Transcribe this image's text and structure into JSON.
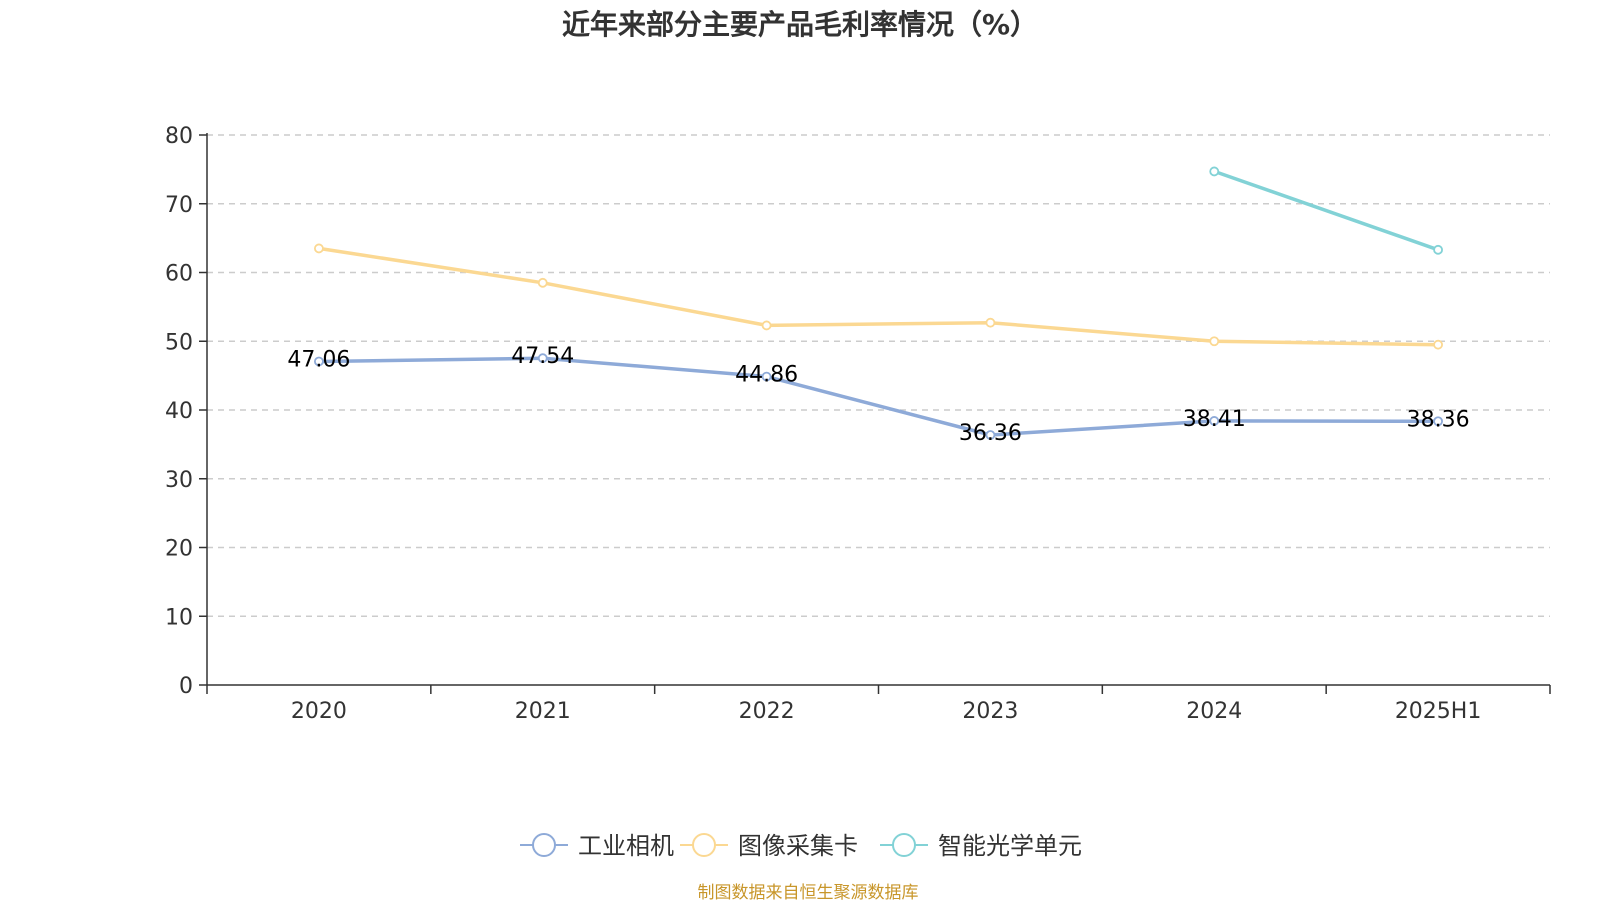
{
  "chart_data": {
    "type": "line",
    "title": "近年来部分主要产品毛利率情况（%）",
    "xlabel": "",
    "ylabel": "",
    "categories": [
      "2020",
      "2021",
      "2022",
      "2023",
      "2024",
      "2025H1"
    ],
    "ylim": [
      0,
      80
    ],
    "yticks": [
      0,
      10,
      20,
      30,
      40,
      50,
      60,
      70,
      80
    ],
    "grid": true,
    "legend_position": "bottom",
    "series": [
      {
        "name": "工业相机",
        "color": "#8eaad8",
        "values": [
          47.06,
          47.54,
          44.86,
          36.36,
          38.41,
          38.36
        ],
        "show_labels": true
      },
      {
        "name": "图像采集卡",
        "color": "#fbd892",
        "values": [
          63.5,
          58.5,
          52.3,
          52.7,
          50.0,
          49.5
        ],
        "show_labels": false
      },
      {
        "name": "智能光学单元",
        "color": "#82d2d6",
        "values": [
          null,
          null,
          null,
          null,
          74.7,
          63.3
        ],
        "show_labels": false
      }
    ],
    "source": "制图数据来自恒生聚源数据库"
  }
}
